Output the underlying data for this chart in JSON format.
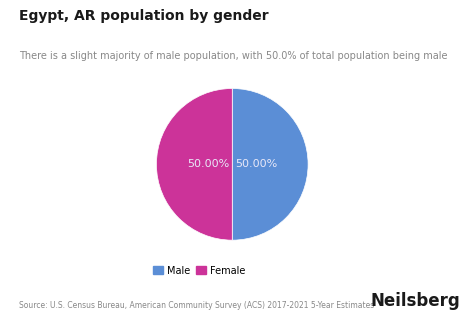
{
  "title": "Egypt, AR population by gender",
  "subtitle": "There is a slight majority of male population, with 50.0% of total population being male",
  "slices": [
    50.0,
    50.0
  ],
  "labels": [
    "Male",
    "Female"
  ],
  "colors": [
    "#5B8ED6",
    "#CC3399"
  ],
  "slice_labels": [
    "50.00%",
    "50.00%"
  ],
  "slice_label_color": "#e8e8f8",
  "legend_labels": [
    "Male",
    "Female"
  ],
  "source_text": "Source: U.S. Census Bureau, American Community Survey (ACS) 2017-2021 5-Year Estimates",
  "brand_text": "Neilsberg",
  "background_color": "#ffffff",
  "title_fontsize": 10,
  "subtitle_fontsize": 7,
  "slice_label_fontsize": 8,
  "source_fontsize": 5.5,
  "brand_fontsize": 12,
  "startangle": 90
}
